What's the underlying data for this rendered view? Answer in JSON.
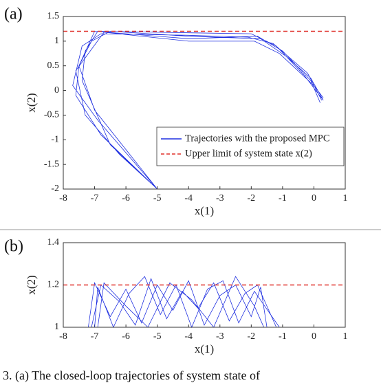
{
  "caption": "3. (a)  The closed-loop trajectories of system state of",
  "chart_data": [
    {
      "type": "line",
      "panel_label": "(a)",
      "x_label": "x(1)",
      "y_label": "x(2)",
      "xlim": [
        -8,
        1
      ],
      "xticks": [
        -8,
        -7,
        -6,
        -5,
        -4,
        -3,
        -2,
        -1,
        0,
        1
      ],
      "ylim": [
        -2,
        1.5
      ],
      "yticks": [
        -2,
        -1.5,
        -1,
        -0.5,
        0,
        0.5,
        1,
        1.5
      ],
      "legend": "lower right",
      "series": [
        {
          "name": "Trajectories with the proposed MPC",
          "color": "#1f2fe0",
          "style": "solid",
          "x": [
            -5,
            -6.5,
            -7.4,
            -7.3,
            -6.9,
            -4,
            -2,
            -1.2,
            -0.3,
            0.3,
            null,
            -5,
            -6.8,
            -7.6,
            -7.5,
            -7.0,
            -4,
            -1.8,
            -1.0,
            -0.1,
            0.2,
            null,
            -5,
            -6.2,
            -7.3,
            -7.6,
            -6.7,
            -4,
            -1.9,
            -1.1,
            0,
            0.3,
            null,
            -5,
            -6.9,
            -7.7,
            -7.4,
            -6.8,
            -4,
            -2.1,
            -1.3,
            -0.2,
            0.25,
            null,
            -5,
            -7.0,
            -7.5,
            -7.1,
            -6.5,
            -4,
            -1.7,
            -0.9,
            -0.1,
            0.3
          ],
          "values": [
            -2,
            -1.1,
            0.2,
            0.8,
            1.2,
            1.17,
            1.15,
            0.9,
            0.3,
            -0.2,
            null,
            -2,
            -0.9,
            -0.1,
            0.5,
            1.2,
            1.05,
            1.1,
            0.8,
            0.2,
            -0.25,
            null,
            -2,
            -1.3,
            -0.5,
            0.4,
            1.18,
            1.0,
            1.0,
            0.75,
            0.1,
            -0.15,
            null,
            -2,
            -0.6,
            0.1,
            0.9,
            1.15,
            1.12,
            1.08,
            0.95,
            0.35,
            -0.2,
            null,
            -2,
            -0.4,
            0.5,
            1.0,
            1.2,
            1.1,
            1.05,
            0.7,
            0.25,
            -0.2
          ]
        },
        {
          "name": "Upper limit of system state x(2)",
          "color": "#e0302a",
          "style": "dashed",
          "x": [
            -8,
            1
          ],
          "values": [
            1.2,
            1.2
          ]
        }
      ]
    },
    {
      "type": "line",
      "panel_label": "(b)",
      "x_label": "x(1)",
      "y_label": "x(2)",
      "xlim": [
        -8,
        1
      ],
      "xticks": [
        -8,
        -7,
        -6,
        -5,
        -4,
        -3,
        -2,
        -1,
        0,
        1
      ],
      "ylim": [
        1,
        1.4
      ],
      "yticks": [
        1,
        1.2,
        1.4
      ],
      "series": [
        {
          "color": "#1f2fe0",
          "style": "solid",
          "x": [
            -7.2,
            -7.0,
            -6.5,
            -6.0,
            -5.5,
            -5.0,
            -4.5,
            -4.0,
            -3.5,
            -3.0,
            -2.5,
            -2.0,
            -1.7,
            -1.5,
            null,
            -7.1,
            -6.8,
            -6.2,
            -5.7,
            -5.2,
            -4.7,
            -4.2,
            -3.7,
            -3.2,
            -2.7,
            -2.2,
            -1.8,
            -1.2,
            null,
            -7.0,
            -6.9,
            -6.4,
            -5.9,
            -5.4,
            -4.9,
            -4.4,
            -3.9,
            -3.4,
            -2.9,
            -2.4,
            -1.9,
            -1.1,
            null,
            -6.9,
            -6.7,
            -6.0,
            -5.3,
            -4.6,
            -3.9,
            -3.2,
            -2.5,
            -1.9,
            -1.6
          ],
          "values": [
            1,
            1.21,
            1.05,
            1.18,
            1.02,
            1.2,
            1.08,
            1.22,
            1.01,
            1.15,
            1.2,
            1.05,
            1.19,
            1,
            null,
            1,
            1.2,
            1.12,
            1.01,
            1.23,
            1.04,
            1.17,
            1.09,
            1.21,
            1.03,
            1.16,
            1.2,
            1,
            null,
            1,
            1.19,
            1.0,
            1.16,
            1.24,
            1.06,
            1.2,
            1.0,
            1.18,
            1.22,
            1.02,
            1.17,
            1,
            null,
            1,
            1.21,
            1.1,
            1.0,
            1.21,
            1.13,
            1.0,
            1.24,
            1.1,
            1
          ]
        },
        {
          "color": "#e0302a",
          "style": "dashed",
          "x": [
            -8,
            1
          ],
          "values": [
            1.2,
            1.2
          ]
        }
      ]
    }
  ]
}
